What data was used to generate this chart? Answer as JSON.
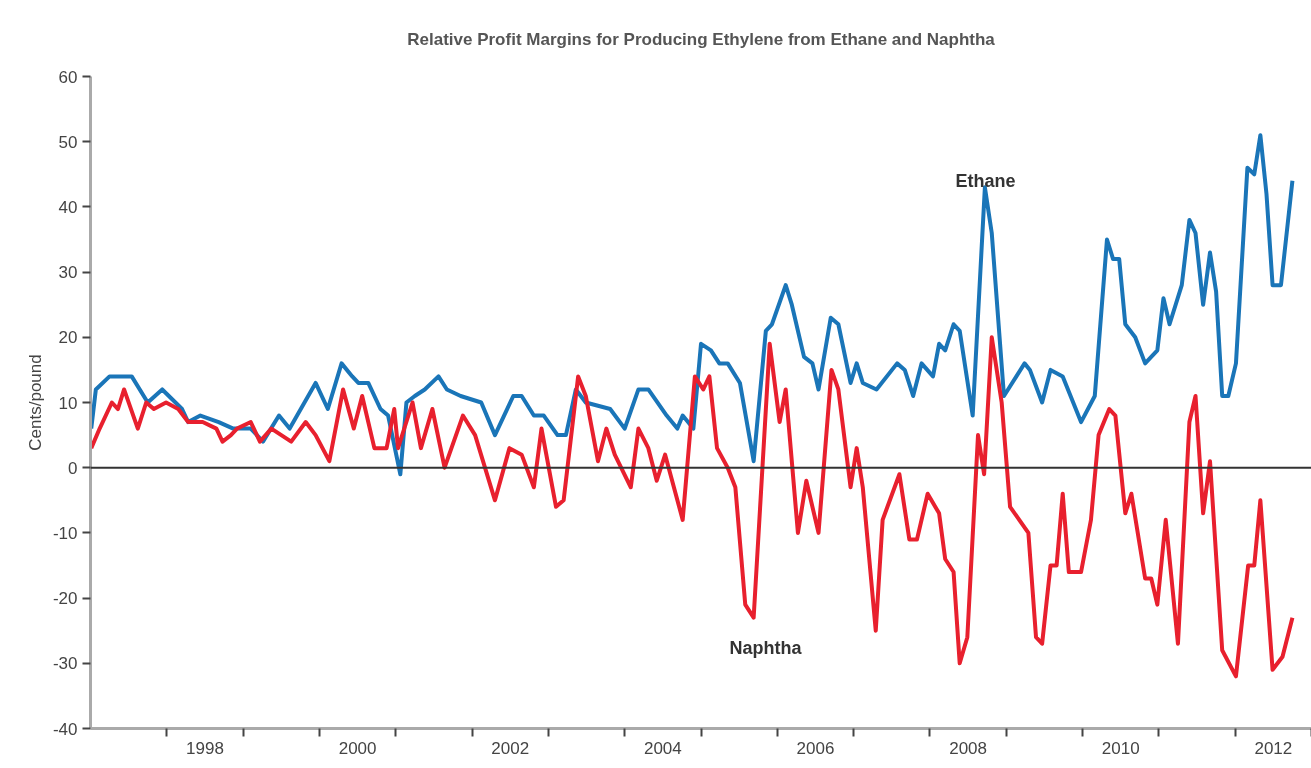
{
  "chart_data": {
    "type": "line",
    "title": "Relative Profit Margins for Producing Ethylene from Ethane and Naphtha",
    "ylabel": "Cents/pound",
    "xlim": [
      1997,
      2013
    ],
    "ylim": [
      -40,
      60
    ],
    "yticks": [
      -40,
      -30,
      -20,
      -10,
      0,
      10,
      20,
      30,
      40,
      50,
      60
    ],
    "xticks": [
      {
        "value": 1998,
        "label": null
      },
      {
        "value": 1998.5,
        "label": "1998"
      },
      {
        "value": 1999,
        "label": null
      },
      {
        "value": 2000,
        "label": null
      },
      {
        "value": 2000.5,
        "label": "2000"
      },
      {
        "value": 2001,
        "label": null
      },
      {
        "value": 2002,
        "label": null
      },
      {
        "value": 2002.5,
        "label": "2002"
      },
      {
        "value": 2003,
        "label": null
      },
      {
        "value": 2004,
        "label": null
      },
      {
        "value": 2004.5,
        "label": "2004"
      },
      {
        "value": 2005,
        "label": null
      },
      {
        "value": 2006,
        "label": null
      },
      {
        "value": 2006.5,
        "label": "2006"
      },
      {
        "value": 2007,
        "label": null
      },
      {
        "value": 2008,
        "label": null
      },
      {
        "value": 2008.5,
        "label": "2008"
      },
      {
        "value": 2009,
        "label": null
      },
      {
        "value": 2010,
        "label": null
      },
      {
        "value": 2010.5,
        "label": "2010"
      },
      {
        "value": 2011,
        "label": null
      },
      {
        "value": 2012,
        "label": null
      },
      {
        "value": 2012.5,
        "label": "2012"
      },
      {
        "value": 2013,
        "label": null
      }
    ],
    "grid": false,
    "line_style": "solid",
    "marker": "none",
    "ref_lines": [
      {
        "axis": "y",
        "value": 0,
        "color": "#333333"
      }
    ],
    "annotations": [
      "Ethane",
      "Naphtha"
    ],
    "series": [
      {
        "color": "#1a75b8",
        "x": [
          1997.01,
          1997.07,
          1997.25,
          1997.46,
          1997.54,
          1997.75,
          1997.94,
          1998.2,
          1998.28,
          1998.44,
          1998.68,
          1998.87,
          1999.1,
          1999.26,
          1999.47,
          1999.61,
          1999.95,
          2000.11,
          2000.29,
          2000.43,
          2000.51,
          2000.64,
          2000.8,
          2000.9,
          2001.06,
          2001.14,
          2001.25,
          2001.38,
          2001.56,
          2001.67,
          2001.85,
          2002.12,
          2002.3,
          2002.54,
          2002.65,
          2002.81,
          2002.94,
          2003.12,
          2003.23,
          2003.36,
          2003.49,
          2003.81,
          2004.0,
          2004.18,
          2004.31,
          2004.55,
          2004.69,
          2004.76,
          2004.9,
          2005.0,
          2005.13,
          2005.24,
          2005.35,
          2005.51,
          2005.69,
          2005.85,
          2005.93,
          2006.11,
          2006.19,
          2006.35,
          2006.46,
          2006.54,
          2006.7,
          2006.8,
          2006.96,
          2007.04,
          2007.12,
          2007.3,
          2007.57,
          2007.67,
          2007.78,
          2007.89,
          2008.04,
          2008.12,
          2008.2,
          2008.31,
          2008.39,
          2008.56,
          2008.72,
          2008.81,
          2008.97,
          2009.24,
          2009.31,
          2009.47,
          2009.58,
          2009.74,
          2009.98,
          2010.16,
          2010.32,
          2010.4,
          2010.48,
          2010.56,
          2010.69,
          2010.82,
          2010.98,
          2011.06,
          2011.14,
          2011.3,
          2011.4,
          2011.48,
          2011.58,
          2011.67,
          2011.75,
          2011.83,
          2011.91,
          2012.01,
          2012.16,
          2012.25,
          2012.33,
          2012.41,
          2012.49,
          2012.6,
          2012.75
        ],
        "values": [
          6,
          12,
          14,
          14,
          14,
          10,
          12,
          9,
          7,
          8,
          7,
          6,
          6,
          4,
          8,
          6,
          13,
          9,
          16,
          14,
          13,
          13,
          9,
          8,
          -1,
          10,
          11,
          12,
          14,
          12,
          11,
          10,
          5,
          11,
          11,
          8,
          8,
          5,
          5,
          12,
          10,
          9,
          6,
          12,
          12,
          8,
          6,
          8,
          6,
          19,
          18,
          16,
          16,
          13,
          1,
          21,
          22,
          28,
          25,
          17,
          16,
          12,
          23,
          22,
          13,
          16,
          13,
          12,
          16,
          15,
          11,
          16,
          14,
          19,
          18,
          22,
          21,
          8,
          43,
          36,
          11,
          16,
          15,
          10,
          15,
          14,
          7,
          11,
          35,
          32,
          32,
          22,
          20,
          16,
          18,
          26,
          22,
          28,
          38,
          36,
          25,
          33,
          27,
          11,
          11,
          16,
          46,
          45,
          51,
          42,
          28,
          28,
          44
        ]
      },
      {
        "color": "#e8202e",
        "x": [
          1997.01,
          1997.12,
          1997.28,
          1997.36,
          1997.44,
          1997.62,
          1997.73,
          1997.83,
          1997.99,
          1998.15,
          1998.28,
          1998.47,
          1998.65,
          1998.73,
          1998.84,
          1998.92,
          1999.1,
          1999.22,
          1999.37,
          1999.5,
          1999.63,
          1999.82,
          1999.95,
          2000.13,
          2000.31,
          2000.45,
          2000.56,
          2000.72,
          2000.88,
          2000.98,
          2001.03,
          2001.22,
          2001.33,
          2001.48,
          2001.64,
          2001.88,
          2002.04,
          2002.3,
          2002.49,
          2002.65,
          2002.81,
          2002.91,
          2003.1,
          2003.2,
          2003.39,
          2003.49,
          2003.65,
          2003.76,
          2003.87,
          2004.08,
          2004.18,
          2004.31,
          2004.42,
          2004.53,
          2004.76,
          2004.92,
          2005.03,
          2005.11,
          2005.21,
          2005.35,
          2005.45,
          2005.58,
          2005.69,
          2005.9,
          2006.03,
          2006.11,
          2006.27,
          2006.38,
          2006.54,
          2006.71,
          2006.8,
          2006.96,
          2007.04,
          2007.12,
          2007.29,
          2007.38,
          2007.6,
          2007.73,
          2007.83,
          2007.97,
          2008.12,
          2008.2,
          2008.31,
          2008.39,
          2008.49,
          2008.63,
          2008.71,
          2008.81,
          2008.94,
          2009.05,
          2009.29,
          2009.39,
          2009.47,
          2009.58,
          2009.66,
          2009.74,
          2009.82,
          2009.98,
          2010.11,
          2010.21,
          2010.35,
          2010.43,
          2010.56,
          2010.64,
          2010.82,
          2010.9,
          2010.98,
          2011.09,
          2011.25,
          2011.4,
          2011.48,
          2011.58,
          2011.67,
          2011.83,
          2012.01,
          2012.17,
          2012.25,
          2012.33,
          2012.49,
          2012.62,
          2012.75
        ],
        "values": [
          3,
          6,
          10,
          9,
          12,
          6,
          10,
          9,
          10,
          9,
          7,
          7,
          6,
          4,
          5,
          6,
          7,
          4,
          6,
          5,
          4,
          7,
          5,
          1,
          12,
          6,
          11,
          3,
          3,
          9,
          3,
          10,
          3,
          9,
          0,
          8,
          5,
          -5,
          3,
          2,
          -3,
          6,
          -6,
          -5,
          14,
          11,
          1,
          6,
          2,
          -3,
          6,
          3,
          -2,
          2,
          -8,
          14,
          12,
          14,
          3,
          0,
          -3,
          -21,
          -23,
          19,
          7,
          12,
          -10,
          -2,
          -10,
          15,
          12,
          -3,
          3,
          -3,
          -25,
          -8,
          -1,
          -11,
          -11,
          -4,
          -7,
          -14,
          -16,
          -30,
          -26,
          5,
          -1,
          20,
          10,
          -6,
          -10,
          -26,
          -27,
          -15,
          -15,
          -4,
          -16,
          -16,
          -8,
          5,
          9,
          8,
          -7,
          -4,
          -17,
          -17,
          -21,
          -8,
          -27,
          7,
          11,
          -7,
          1,
          -28,
          -32,
          -15,
          -15,
          -5,
          -31,
          -29,
          -23
        ]
      }
    ]
  }
}
